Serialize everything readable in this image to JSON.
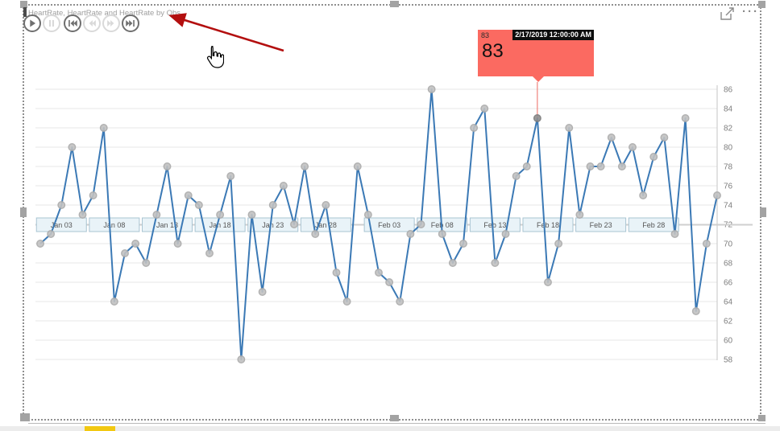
{
  "visual": {
    "title": "HeartRate, HeartRate and HeartRate by Obs",
    "controls": [
      {
        "name": "play",
        "enabled": true
      },
      {
        "name": "pause",
        "enabled": false
      },
      {
        "name": "skip-to-start",
        "enabled": true
      },
      {
        "name": "step-back",
        "enabled": false
      },
      {
        "name": "step-forward",
        "enabled": false
      },
      {
        "name": "skip-to-end",
        "enabled": true
      }
    ],
    "header": {
      "focus_mode_icon": "focus-mode",
      "more_options_label": "···"
    }
  },
  "tooltip": {
    "value": "83",
    "timestamp": "2/17/2019 12:00:00 AM",
    "bg_color": "#fb6a61",
    "chip_bg": "#0d0d0d"
  },
  "chart_data": {
    "type": "line",
    "title": "HeartRate, HeartRate and HeartRate by Obs",
    "series": [
      {
        "name": "HeartRate",
        "x": [
          "1/1/2019",
          "1/2/2019",
          "1/3/2019",
          "1/4/2019",
          "1/5/2019",
          "1/6/2019",
          "1/7/2019",
          "1/8/2019",
          "1/9/2019",
          "1/10/2019",
          "1/11/2019",
          "1/12/2019",
          "1/13/2019",
          "1/14/2019",
          "1/15/2019",
          "1/16/2019",
          "1/17/2019",
          "1/18/2019",
          "1/19/2019",
          "1/20/2019",
          "1/21/2019",
          "1/22/2019",
          "1/23/2019",
          "1/24/2019",
          "1/25/2019",
          "1/26/2019",
          "1/27/2019",
          "1/28/2019",
          "1/29/2019",
          "1/30/2019",
          "1/31/2019",
          "2/1/2019",
          "2/2/2019",
          "2/3/2019",
          "2/4/2019",
          "2/5/2019",
          "2/6/2019",
          "2/7/2019",
          "2/8/2019",
          "2/9/2019",
          "2/10/2019",
          "2/11/2019",
          "2/12/2019",
          "2/13/2019",
          "2/14/2019",
          "2/15/2019",
          "2/16/2019",
          "2/17/2019",
          "2/18/2019",
          "2/19/2019",
          "2/20/2019",
          "2/21/2019",
          "2/22/2019",
          "2/23/2019",
          "2/24/2019",
          "2/25/2019",
          "2/26/2019",
          "2/27/2019",
          "2/28/2019",
          "3/1/2019",
          "3/2/2019",
          "3/3/2019",
          "3/4/2019",
          "3/5/2019",
          "3/6/2019"
        ],
        "values": [
          70,
          71,
          74,
          80,
          73,
          75,
          82,
          64,
          69,
          70,
          68,
          73,
          78,
          70,
          75,
          74,
          69,
          73,
          77,
          58,
          73,
          65,
          74,
          76,
          72,
          78,
          71,
          74,
          67,
          64,
          78,
          73,
          67,
          66,
          64,
          71,
          72,
          86,
          71,
          68,
          70,
          82,
          84,
          68,
          71,
          77,
          78,
          83,
          66,
          70,
          82,
          73,
          78,
          78,
          81,
          78,
          80,
          75,
          79,
          81,
          71,
          83,
          63,
          70,
          75
        ]
      }
    ],
    "x_ticks": [
      {
        "label": "Jan 03",
        "index": 2
      },
      {
        "label": "Jan 08",
        "index": 7
      },
      {
        "label": "Jan 13",
        "index": 12
      },
      {
        "label": "Jan 18",
        "index": 17
      },
      {
        "label": "Jan 23",
        "index": 22
      },
      {
        "label": "Jan 28",
        "index": 27
      },
      {
        "label": "Feb 03",
        "index": 33
      },
      {
        "label": "Feb 08",
        "index": 38
      },
      {
        "label": "Feb 13",
        "index": 43
      },
      {
        "label": "Feb 18",
        "index": 48
      },
      {
        "label": "Feb 23",
        "index": 53
      },
      {
        "label": "Feb 28",
        "index": 58
      }
    ],
    "y_ticks": [
      86,
      84,
      82,
      80,
      78,
      76,
      74,
      72,
      70,
      68,
      66,
      64,
      62,
      60,
      58
    ],
    "ylim": [
      58,
      86
    ],
    "grid": true,
    "legend": "none",
    "y_axis_side": "right",
    "selected_point": {
      "index": 47,
      "x": "2/17/2019",
      "value": 83
    },
    "line_color": "#3b79b5",
    "point_color": "#c2c2c2",
    "selected_point_color": "#8f8f8f",
    "tick_box_fill": "#e9f3f8",
    "tick_box_border": "#a9c4d2"
  },
  "page": {
    "bottom_accent_color": "#f2c811"
  }
}
